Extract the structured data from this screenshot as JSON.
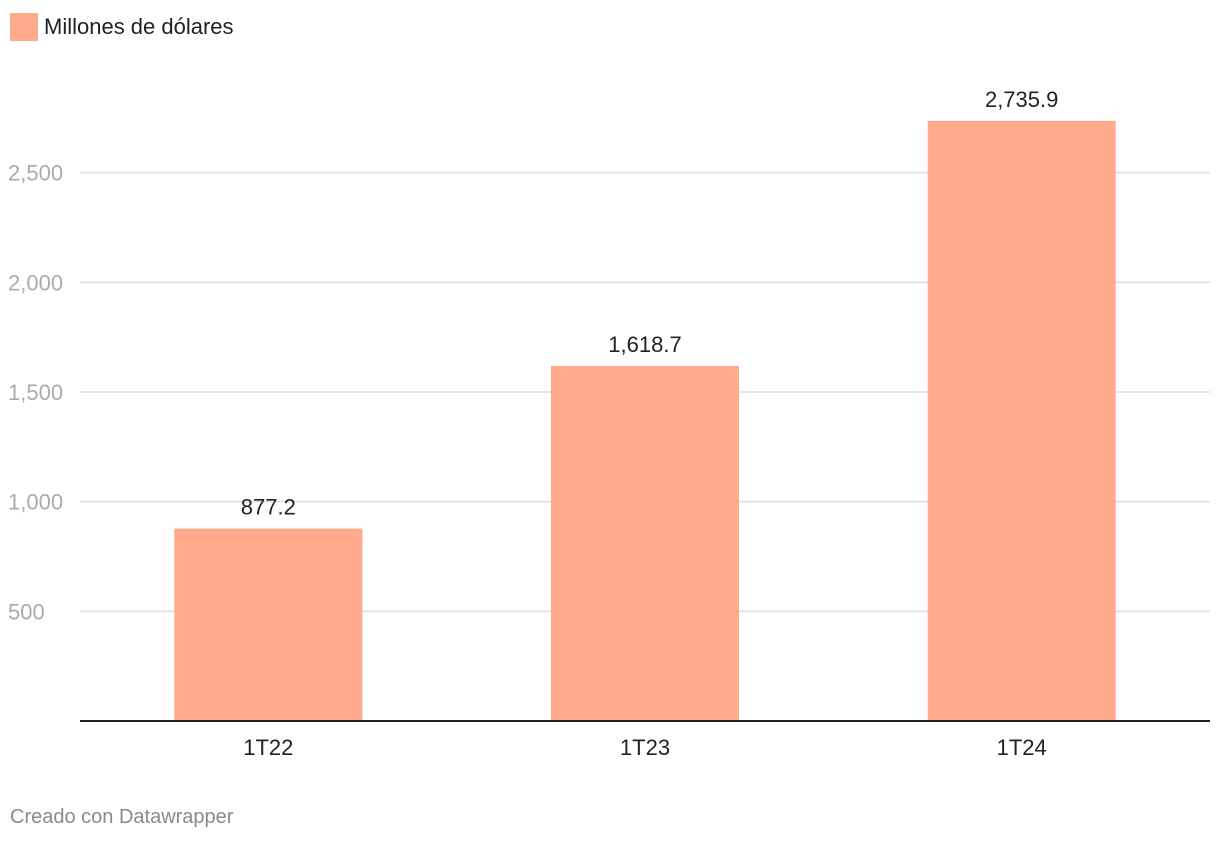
{
  "chart_data": {
    "type": "bar",
    "categories": [
      "1T22",
      "1T23",
      "1T24"
    ],
    "series": [
      {
        "name": "Millones de dólares",
        "values": [
          877.2,
          1618.7,
          2735.9
        ],
        "value_labels": [
          "877.2",
          "1,618.7",
          "2,735.9"
        ],
        "color": "#ffaa8b"
      }
    ],
    "ylim": [
      0,
      2800
    ],
    "yticks": [
      500,
      1000,
      1500,
      2000,
      2500
    ],
    "ytick_labels": [
      "500",
      "1,000",
      "1,500",
      "2,000",
      "2,500"
    ],
    "grid": true,
    "legend": "top-left"
  },
  "colors": {
    "bar": "#ffaa8b",
    "grid": "#dddddd",
    "axis": "#222222",
    "tick_text": "#aaaaaa",
    "label_text": "#222222"
  },
  "credit": "Creado con Datawrapper"
}
